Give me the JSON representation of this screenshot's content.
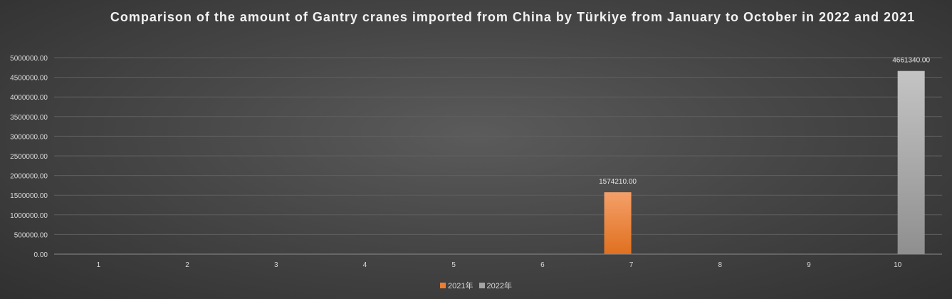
{
  "chart_data": {
    "type": "bar",
    "title": "Comparison of the amount of Gantry cranes imported from China by Türkiye from January to October in 2022 and 2021",
    "categories": [
      "1",
      "2",
      "3",
      "4",
      "5",
      "6",
      "7",
      "8",
      "9",
      "10"
    ],
    "series": [
      {
        "name": "2021年",
        "color": "#ed7d31",
        "values": [
          0,
          0,
          0,
          0,
          0,
          0,
          1574210,
          0,
          0,
          0
        ]
      },
      {
        "name": "2022年",
        "color": "#a5a5a5",
        "values": [
          0,
          0,
          0,
          0,
          0,
          0,
          0,
          0,
          0,
          4661340
        ]
      }
    ],
    "data_labels": [
      {
        "series": 0,
        "category": "7",
        "text": "1574210.00"
      },
      {
        "series": 1,
        "category": "10",
        "text": "4661340.00"
      }
    ],
    "y_ticks": [
      "0.00",
      "500000.00",
      "1000000.00",
      "1500000.00",
      "2000000.00",
      "2500000.00",
      "3000000.00",
      "3500000.00",
      "4000000.00",
      "4500000.00",
      "5000000.00"
    ],
    "ylim": [
      0,
      5000000
    ],
    "xlabel": "",
    "ylabel": "",
    "grid": true,
    "legend_position": "bottom"
  }
}
